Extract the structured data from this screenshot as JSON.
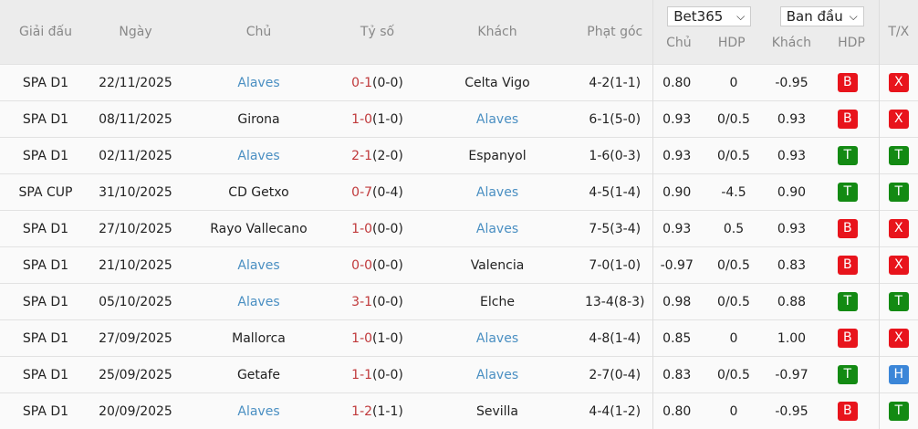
{
  "headers": {
    "league": "Giải đấu",
    "date": "Ngày",
    "home": "Chủ",
    "score": "Tỷ số",
    "away": "Khách",
    "corners": "Phạt góc",
    "odds_home": "Chủ",
    "odds_hdp": "HDP",
    "odds_away": "Khách",
    "result_hdp": "HDP",
    "ou": "T/X"
  },
  "bookmaker_select": {
    "value": "Bet365"
  },
  "odds_type_select": {
    "value": "Ban đầu"
  },
  "colors": {
    "B": "#e8141c",
    "X": "#e8141c",
    "T": "#138a13",
    "H": "#3b86d8",
    "highlight_team": "#4a8fc2",
    "score": "#c0393b"
  },
  "highlight_team": "Alaves",
  "rows": [
    {
      "league": "SPA D1",
      "date": "22/11/2025",
      "home": "Alaves",
      "ft": "0-1",
      "ht": "(0-0)",
      "away": "Celta Vigo",
      "corners": "4-2(1-1)",
      "oh": "0.80",
      "hdp": "0",
      "oa": "-0.95",
      "res": "B",
      "ou": "X"
    },
    {
      "league": "SPA D1",
      "date": "08/11/2025",
      "home": "Girona",
      "ft": "1-0",
      "ht": "(1-0)",
      "away": "Alaves",
      "corners": "6-1(5-0)",
      "oh": "0.93",
      "hdp": "0/0.5",
      "oa": "0.93",
      "res": "B",
      "ou": "X"
    },
    {
      "league": "SPA D1",
      "date": "02/11/2025",
      "home": "Alaves",
      "ft": "2-1",
      "ht": "(2-0)",
      "away": "Espanyol",
      "corners": "1-6(0-3)",
      "oh": "0.93",
      "hdp": "0/0.5",
      "oa": "0.93",
      "res": "T",
      "ou": "T"
    },
    {
      "league": "SPA CUP",
      "date": "31/10/2025",
      "home": "CD Getxo",
      "ft": "0-7",
      "ht": "(0-4)",
      "away": "Alaves",
      "corners": "4-5(1-4)",
      "oh": "0.90",
      "hdp": "-4.5",
      "oa": "0.90",
      "res": "T",
      "ou": "T"
    },
    {
      "league": "SPA D1",
      "date": "27/10/2025",
      "home": "Rayo Vallecano",
      "ft": "1-0",
      "ht": "(0-0)",
      "away": "Alaves",
      "corners": "7-5(3-4)",
      "oh": "0.93",
      "hdp": "0.5",
      "oa": "0.93",
      "res": "B",
      "ou": "X"
    },
    {
      "league": "SPA D1",
      "date": "21/10/2025",
      "home": "Alaves",
      "ft": "0-0",
      "ht": "(0-0)",
      "away": "Valencia",
      "corners": "7-0(1-0)",
      "oh": "-0.97",
      "hdp": "0/0.5",
      "oa": "0.83",
      "res": "B",
      "ou": "X"
    },
    {
      "league": "SPA D1",
      "date": "05/10/2025",
      "home": "Alaves",
      "ft": "3-1",
      "ht": "(0-0)",
      "away": "Elche",
      "corners": "13-4(8-3)",
      "oh": "0.98",
      "hdp": "0/0.5",
      "oa": "0.88",
      "res": "T",
      "ou": "T"
    },
    {
      "league": "SPA D1",
      "date": "27/09/2025",
      "home": "Mallorca",
      "ft": "1-0",
      "ht": "(1-0)",
      "away": "Alaves",
      "corners": "4-8(1-4)",
      "oh": "0.85",
      "hdp": "0",
      "oa": "1.00",
      "res": "B",
      "ou": "X"
    },
    {
      "league": "SPA D1",
      "date": "25/09/2025",
      "home": "Getafe",
      "ft": "1-1",
      "ht": "(0-0)",
      "away": "Alaves",
      "corners": "2-7(0-4)",
      "oh": "0.83",
      "hdp": "0/0.5",
      "oa": "-0.97",
      "res": "T",
      "ou": "H"
    },
    {
      "league": "SPA D1",
      "date": "20/09/2025",
      "home": "Alaves",
      "ft": "1-2",
      "ht": "(1-1)",
      "away": "Sevilla",
      "corners": "4-4(1-2)",
      "oh": "0.80",
      "hdp": "0",
      "oa": "-0.95",
      "res": "B",
      "ou": "T"
    }
  ]
}
